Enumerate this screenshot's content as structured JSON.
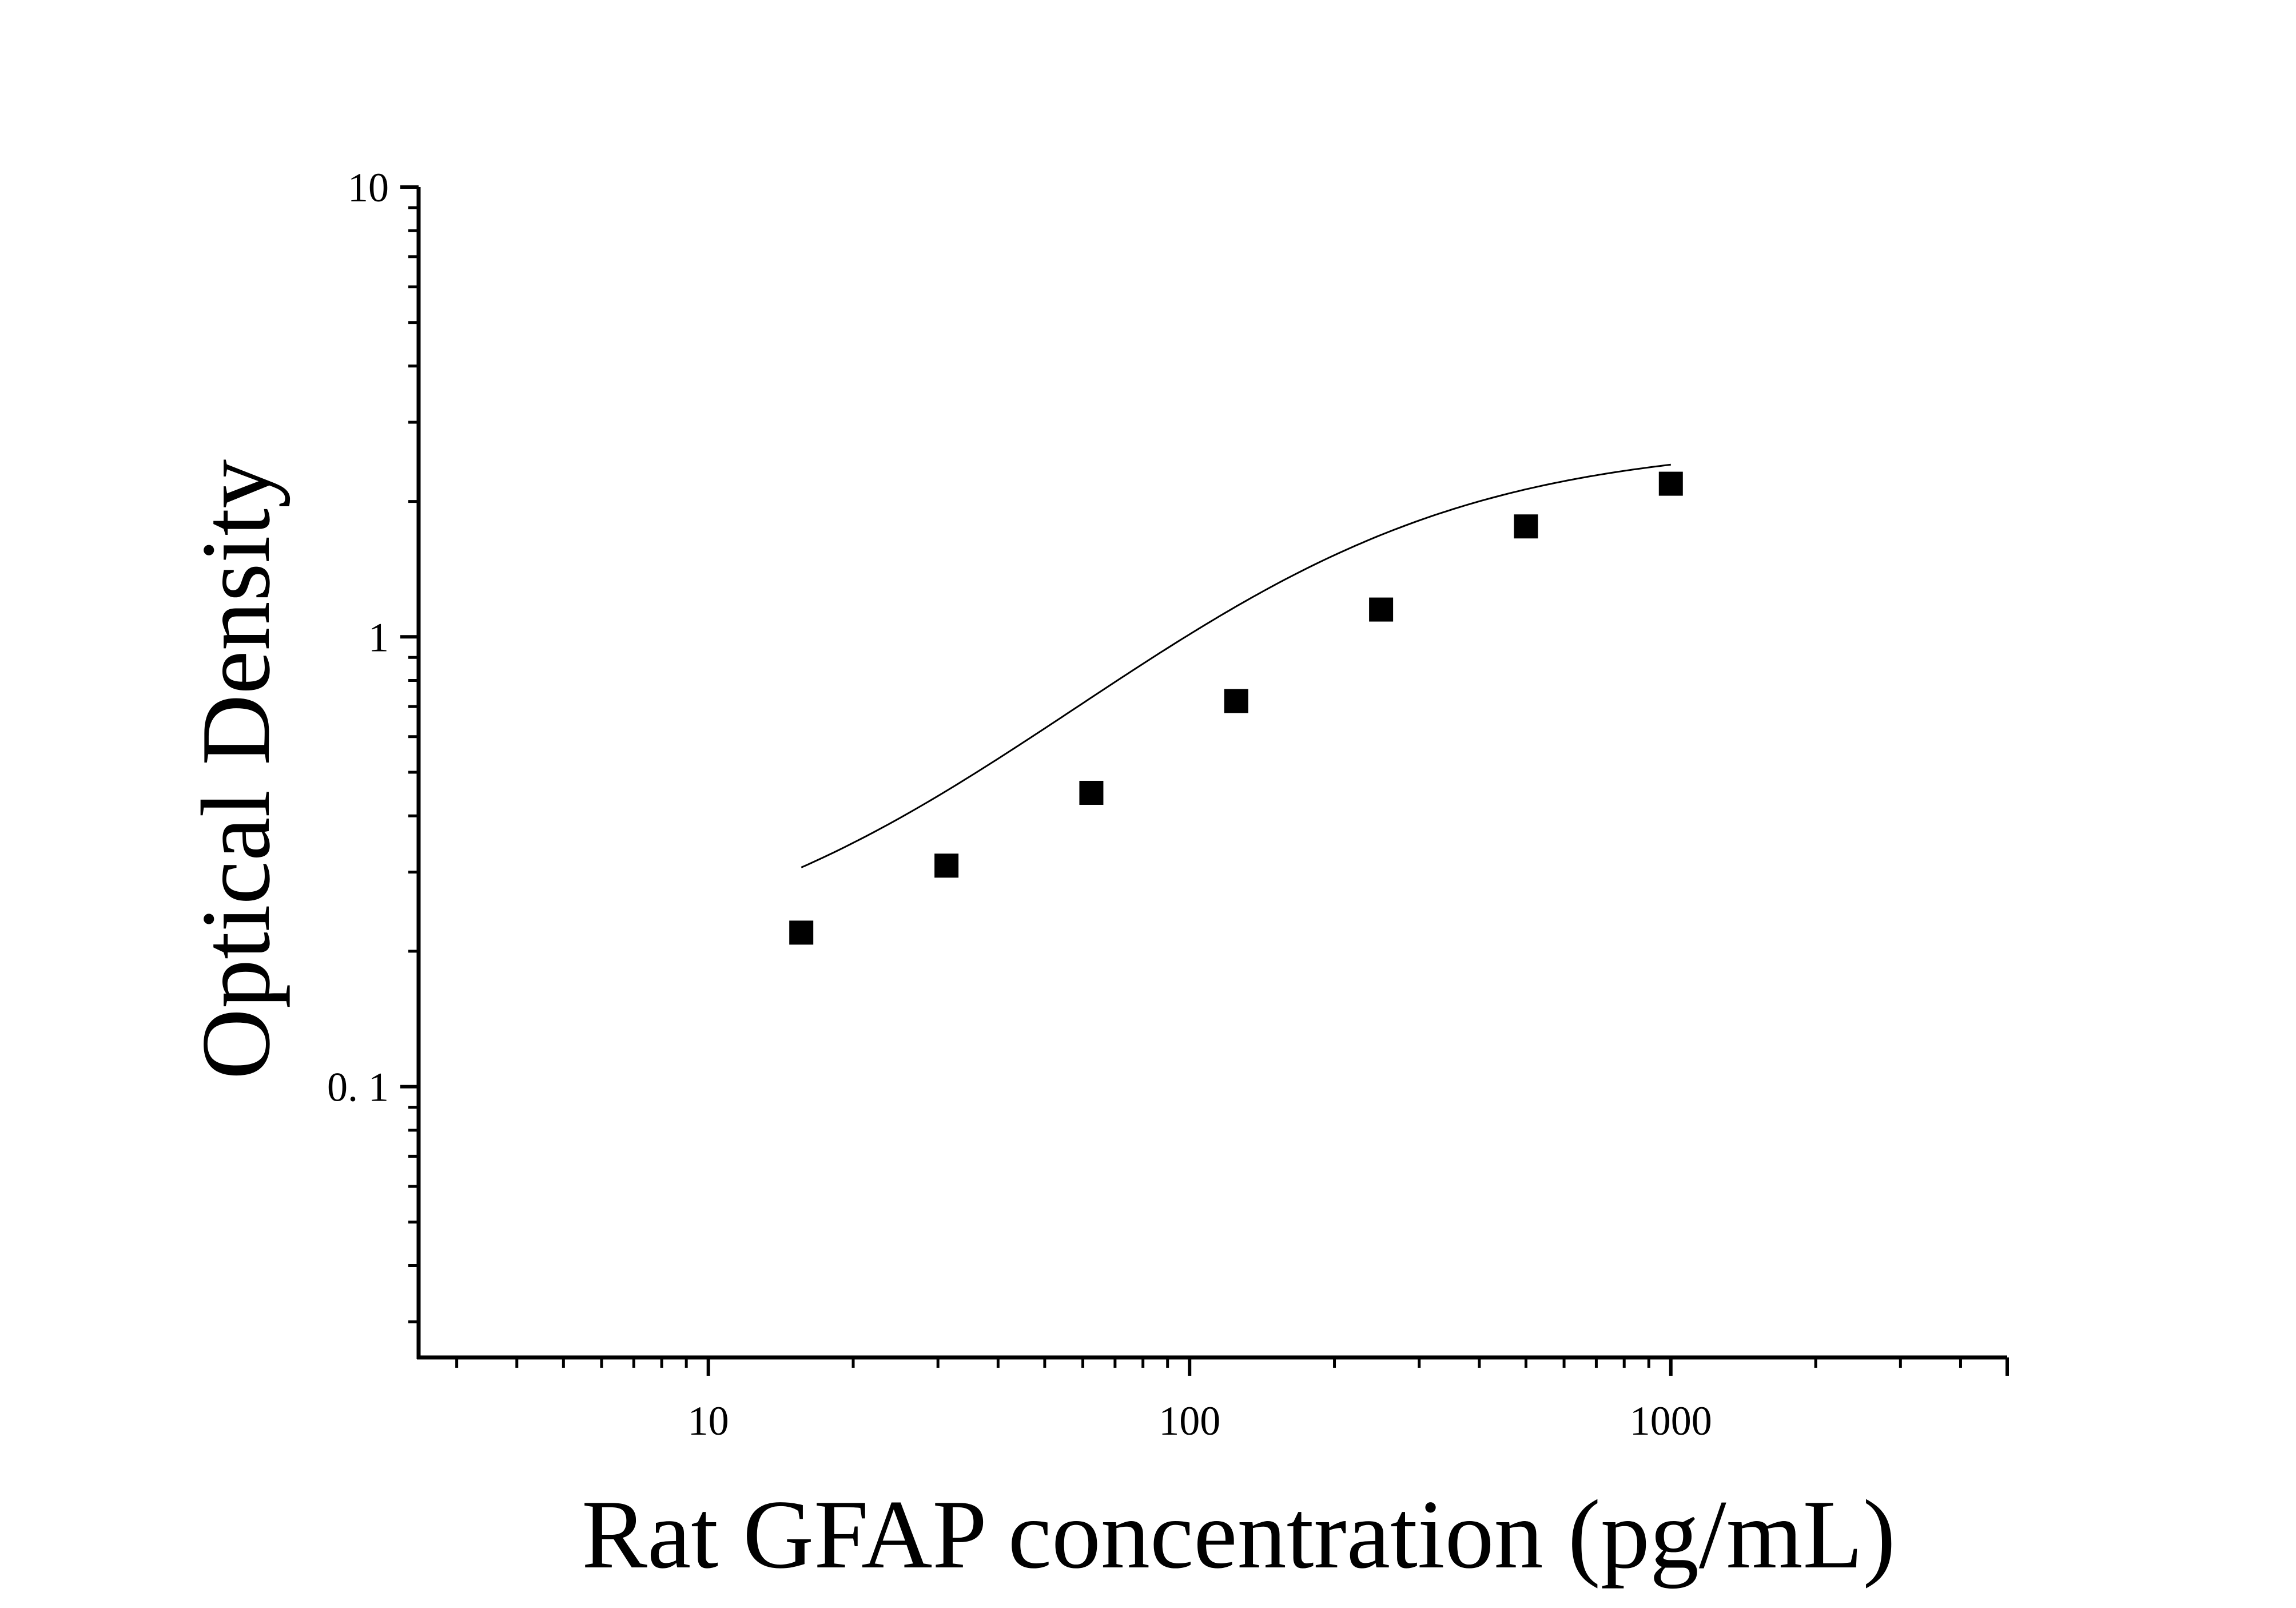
{
  "chart_data": {
    "type": "scatter",
    "title": "",
    "xlabel": "Rat GFAP concentration (pg/mL)",
    "ylabel": "Optical Density",
    "x_scale": "log",
    "y_scale": "log",
    "xlim": [
      2.5,
      5000
    ],
    "ylim": [
      0.025,
      10
    ],
    "x_ticks": [
      {
        "value": 10,
        "label": "10"
      },
      {
        "value": 100,
        "label": "100"
      },
      {
        "value": 1000,
        "label": "1000"
      }
    ],
    "y_ticks": [
      {
        "value": 0.1,
        "label": "0. 1"
      },
      {
        "value": 1,
        "label": "1"
      },
      {
        "value": 10,
        "label": "10"
      }
    ],
    "grid": false,
    "legend": "none",
    "colors": {
      "marker": "#000000",
      "curve": "#000000",
      "axis": "#000000"
    },
    "series": [
      {
        "marker": "square",
        "x": [
          15.6,
          31.25,
          62.5,
          125,
          250,
          500,
          1000
        ],
        "y": [
          0.22,
          0.31,
          0.45,
          0.72,
          1.15,
          1.76,
          2.19
        ]
      }
    ],
    "fit_curve": {
      "model": "4PL",
      "a": 0.18,
      "d": 2.7,
      "c": 180,
      "b": 1.2,
      "x_range": [
        15.6,
        1000
      ]
    }
  }
}
